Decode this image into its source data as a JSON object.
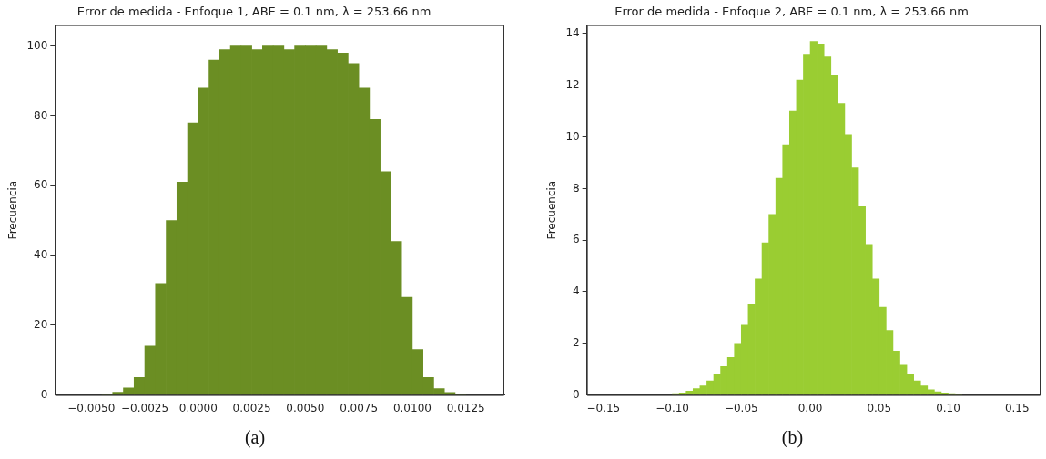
{
  "chart_data": [
    {
      "type": "histogram",
      "title": "Error de medida - Enfoque 1, ABE = 0.1 nm, λ = 253.66 nm",
      "ylabel": "Frecuencia",
      "color": "#6b8e23",
      "grid": false,
      "bins": [
        -0.0045,
        -0.004,
        -0.0035,
        -0.003,
        -0.0025,
        -0.002,
        -0.0015,
        -0.001,
        -0.0005,
        0,
        0.0005,
        0.001,
        0.0015,
        0.002,
        0.0025,
        0.003,
        0.0035,
        0.004,
        0.0045,
        0.005,
        0.0055,
        0.006,
        0.0065,
        0.007,
        0.0075,
        0.008,
        0.0085,
        0.009,
        0.0095,
        0.01,
        0.0105,
        0.011,
        0.0115,
        0.012,
        0.0125
      ],
      "values": [
        0.3,
        0.8,
        2,
        5,
        14,
        32,
        50,
        61,
        78,
        88,
        96,
        99,
        100,
        100,
        99,
        100,
        100,
        99,
        100,
        100,
        100,
        99,
        98,
        95,
        88,
        79,
        64,
        44,
        28,
        13,
        5,
        1.8,
        0.7,
        0.3
      ],
      "xlim": [
        -0.0067,
        0.0143
      ],
      "xticks": [
        {
          "value": -0.005,
          "label": "−0.0050"
        },
        {
          "value": -0.0025,
          "label": "−0.0025"
        },
        {
          "value": 0,
          "label": "0.0000"
        },
        {
          "value": 0.0025,
          "label": "0.0025"
        },
        {
          "value": 0.005,
          "label": "0.0050"
        },
        {
          "value": 0.0075,
          "label": "0.0075"
        },
        {
          "value": 0.01,
          "label": "0.0100"
        },
        {
          "value": 0.0125,
          "label": "0.0125"
        }
      ],
      "ylim": [
        0,
        106
      ],
      "yticks": [
        0,
        20,
        40,
        60,
        80,
        100
      ],
      "annotations": [
        "(a)"
      ]
    },
    {
      "type": "histogram",
      "title": "Error de medida - Enfoque 2, ABE = 0.1 nm, λ = 253.66 nm",
      "ylabel": "Frecuencia",
      "color": "#9acd32",
      "grid": false,
      "bins": [
        -0.1,
        -0.095,
        -0.09,
        -0.085,
        -0.08,
        -0.075,
        -0.07,
        -0.065,
        -0.06,
        -0.055,
        -0.05,
        -0.045,
        -0.04,
        -0.035,
        -0.03,
        -0.025,
        -0.02,
        -0.015,
        -0.01,
        -0.005,
        0,
        0.005,
        0.01,
        0.015,
        0.02,
        0.025,
        0.03,
        0.035,
        0.04,
        0.045,
        0.05,
        0.055,
        0.06,
        0.065,
        0.07,
        0.075,
        0.08,
        0.085,
        0.09,
        0.095,
        0.1,
        0.105,
        0.11
      ],
      "values": [
        0.05,
        0.08,
        0.15,
        0.25,
        0.35,
        0.55,
        0.8,
        1.1,
        1.45,
        2,
        2.7,
        3.5,
        4.5,
        5.9,
        7,
        8.4,
        9.7,
        11,
        12.2,
        13.2,
        13.7,
        13.6,
        13.1,
        12.4,
        11.3,
        10.1,
        8.8,
        7.3,
        5.8,
        4.5,
        3.4,
        2.5,
        1.7,
        1.15,
        0.8,
        0.55,
        0.35,
        0.2,
        0.12,
        0.08,
        0.05,
        0.03
      ],
      "xlim": [
        -0.162,
        0.167
      ],
      "xticks": [
        {
          "value": -0.15,
          "label": "−0.15"
        },
        {
          "value": -0.1,
          "label": "−0.10"
        },
        {
          "value": -0.05,
          "label": "−0.05"
        },
        {
          "value": 0,
          "label": "0.00"
        },
        {
          "value": 0.05,
          "label": "0.05"
        },
        {
          "value": 0.1,
          "label": "0.10"
        },
        {
          "value": 0.15,
          "label": "0.15"
        }
      ],
      "ylim": [
        0,
        14.33
      ],
      "yticks": [
        0,
        2,
        4,
        6,
        8,
        10,
        12,
        14
      ],
      "annotations": [
        "(b)"
      ]
    }
  ]
}
